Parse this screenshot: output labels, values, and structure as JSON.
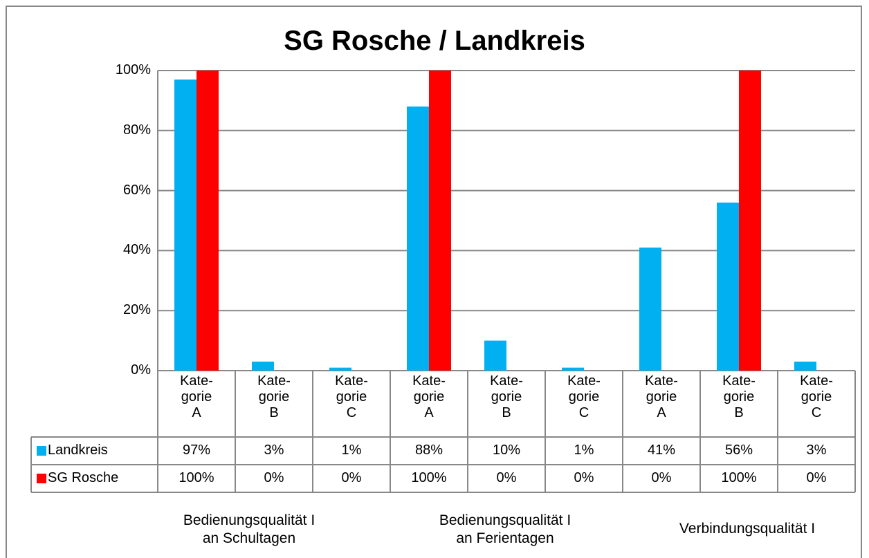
{
  "chart_data": {
    "type": "bar",
    "title": "SG Rosche / Landkreis",
    "categories": [
      "Kate-\ngorie\nA",
      "Kate-\ngorie\nB",
      "Kate-\ngorie\nC",
      "Kate-\ngorie\nA",
      "Kate-\ngorie\nB",
      "Kate-\ngorie\nC",
      "Kate-\ngorie\nA",
      "Kate-\ngorie\nB",
      "Kate-\ngorie\nC"
    ],
    "groups": [
      "Bedienungsqualität I\nan Schultagen",
      "Bedienungsqualität I\nan Ferientagen",
      "Verbindungsqualität I"
    ],
    "series": [
      {
        "name": "Landkreis",
        "color": "#00b0f0",
        "values": [
          97,
          3,
          1,
          88,
          10,
          1,
          41,
          56,
          3
        ],
        "value_labels": [
          "97%",
          "3%",
          "1%",
          "88%",
          "10%",
          "1%",
          "41%",
          "56%",
          "3%"
        ]
      },
      {
        "name": "SG Rosche",
        "color": "#ff0000",
        "values": [
          100,
          0,
          0,
          100,
          0,
          0,
          0,
          100,
          0
        ],
        "value_labels": [
          "100%",
          "0%",
          "0%",
          "100%",
          "0%",
          "0%",
          "0%",
          "100%",
          "0%"
        ]
      }
    ],
    "ylim": [
      0,
      100
    ],
    "yticks": [
      {
        "value": 0,
        "label": "0%"
      },
      {
        "value": 20,
        "label": "20%"
      },
      {
        "value": 40,
        "label": "40%"
      },
      {
        "value": 60,
        "label": "60%"
      },
      {
        "value": 80,
        "label": "80%"
      },
      {
        "value": 100,
        "label": "100%"
      }
    ],
    "grid": true
  }
}
